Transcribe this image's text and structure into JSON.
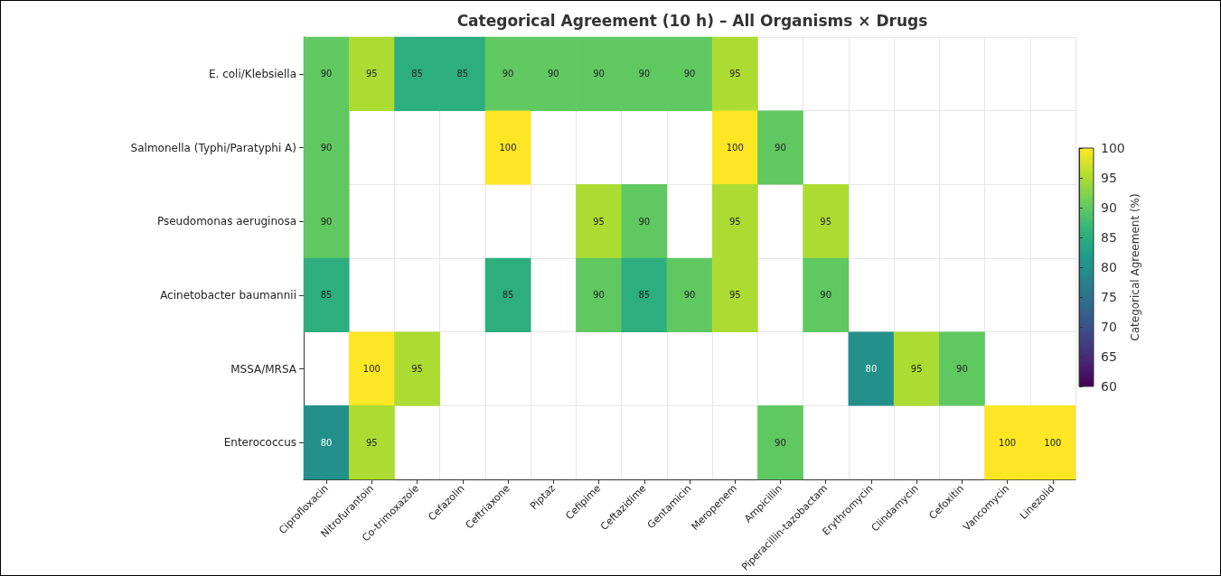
{
  "chart_data": {
    "type": "heatmap",
    "title": "Categorical Agreement (10 h) – All Organisms × Drugs",
    "categories": [
      "Ciprofloxacin",
      "Nitrofurantoin",
      "Co-trimoxazole",
      "Cefazolin",
      "Ceftriaxone",
      "Piptaz",
      "Cefipime",
      "Ceftazidime",
      "Gentamicin",
      "Meropenem",
      "Ampicillin",
      "Piperacillin-tazobactam",
      "Erythromycin",
      "Clindamycin",
      "Cefoxitin",
      "Vancomycin",
      "Linezolid"
    ],
    "y_categories": [
      "E. coli/Klebsiella",
      "Salmonella (Typhi/Paratyphi A)",
      "Pseudomonas aeruginosa",
      "Acinetobacter baumannii",
      "MSSA/MRSA",
      "Enterococcus"
    ],
    "cells": [
      [
        90,
        95,
        85,
        85,
        90,
        90,
        90,
        90,
        90,
        95,
        null,
        null,
        null,
        null,
        null,
        null,
        null
      ],
      [
        90,
        null,
        null,
        null,
        100,
        null,
        null,
        null,
        null,
        100,
        90,
        null,
        null,
        null,
        null,
        null,
        null
      ],
      [
        90,
        null,
        null,
        null,
        null,
        null,
        95,
        90,
        null,
        95,
        null,
        95,
        null,
        null,
        null,
        null,
        null
      ],
      [
        85,
        null,
        null,
        null,
        85,
        null,
        90,
        85,
        90,
        95,
        null,
        90,
        null,
        null,
        null,
        null,
        null
      ],
      [
        null,
        100,
        95,
        null,
        null,
        null,
        null,
        null,
        null,
        null,
        null,
        null,
        80,
        95,
        90,
        null,
        null
      ],
      [
        80,
        95,
        null,
        null,
        null,
        null,
        null,
        null,
        null,
        null,
        90,
        null,
        null,
        null,
        null,
        100,
        100
      ]
    ],
    "clabel": "Categorical Agreement (%)",
    "clim": [
      60,
      100
    ],
    "cticks": [
      60,
      65,
      70,
      75,
      80,
      85,
      90,
      95,
      100
    ],
    "data_labels": true,
    "grid": true
  }
}
